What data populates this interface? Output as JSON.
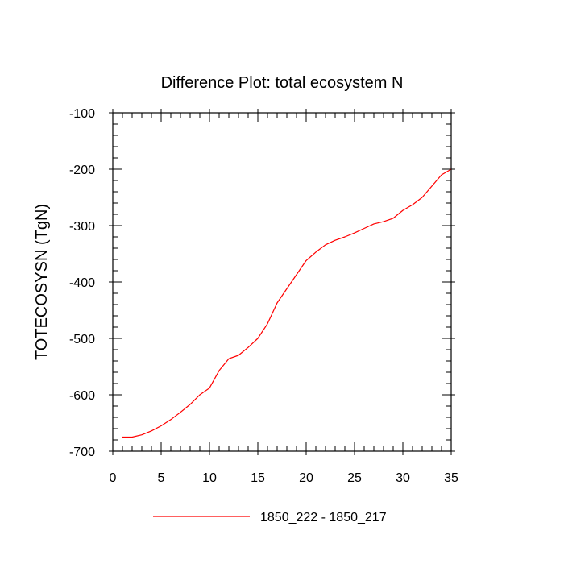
{
  "chart_data": {
    "type": "line",
    "title": "Difference Plot: total ecosystem N",
    "ylabel": "TOTECOSYSN  (TgN)",
    "xlabel": "",
    "xlim": [
      0,
      35
    ],
    "ylim": [
      -700,
      -100
    ],
    "x_ticks": [
      0,
      5,
      10,
      15,
      20,
      25,
      30,
      35
    ],
    "y_ticks": [
      -700,
      -600,
      -500,
      -400,
      -300,
      -200,
      -100
    ],
    "grid": false,
    "legend_position": "bottom-center",
    "series": [
      {
        "name": "1850_222 - 1850_217",
        "color": "#ff0000",
        "x": [
          1,
          2,
          3,
          4,
          5,
          6,
          7,
          8,
          9,
          10,
          11,
          12,
          13,
          14,
          15,
          16,
          17,
          18,
          19,
          20,
          21,
          22,
          23,
          24,
          25,
          26,
          27,
          28,
          29,
          30,
          31,
          32,
          33,
          34,
          35
        ],
        "y": [
          -675,
          -675,
          -671,
          -664,
          -655,
          -644,
          -631,
          -617,
          -600,
          -588,
          -557,
          -536,
          -530,
          -516,
          -500,
          -474,
          -437,
          -412,
          -387,
          -362,
          -347,
          -334,
          -326,
          -320,
          -313,
          -305,
          -297,
          -293,
          -287,
          -273,
          -263,
          -250,
          -230,
          -210,
          -200
        ]
      }
    ]
  }
}
